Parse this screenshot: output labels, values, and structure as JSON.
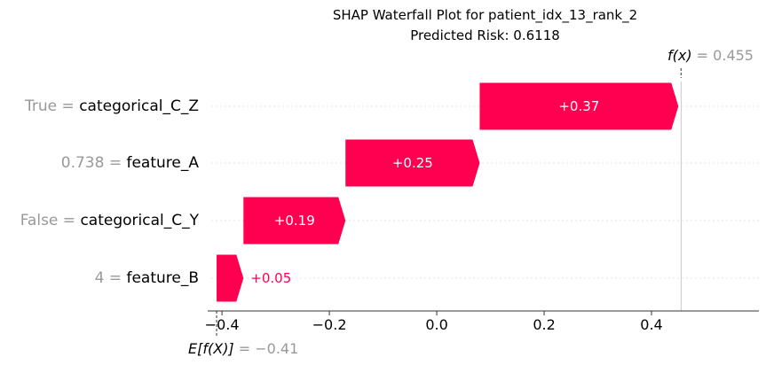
{
  "title": "SHAP Waterfall Plot for patient_idx_13_rank_2",
  "subtitle": "Predicted Risk: 0.6118",
  "fx_label": "f(x)",
  "fx_value": "= 0.455",
  "ex_label": "E[f(X)]",
  "ex_value": "= −0.41",
  "chart_data": {
    "type": "waterfall",
    "base_value": -0.41,
    "output_value": 0.455,
    "xlim": [
      -0.42,
      0.6
    ],
    "xticks": [
      -0.4,
      -0.2,
      0.0,
      0.2,
      0.4
    ],
    "xtick_labels": [
      "−0.4",
      "−0.2",
      "0.0",
      "0.2",
      "0.4"
    ],
    "positive_color": "#ff0051",
    "grid": false,
    "features": [
      {
        "value_label": "True",
        "name": "categorical_C_Z",
        "shap": 0.37,
        "label": "+0.37"
      },
      {
        "value_label": "0.738",
        "name": "feature_A",
        "shap": 0.25,
        "label": "+0.25"
      },
      {
        "value_label": "False",
        "name": "categorical_C_Y",
        "shap": 0.19,
        "label": "+0.19"
      },
      {
        "value_label": "4",
        "name": "feature_B",
        "shap": 0.05,
        "label": "+0.05"
      }
    ]
  }
}
